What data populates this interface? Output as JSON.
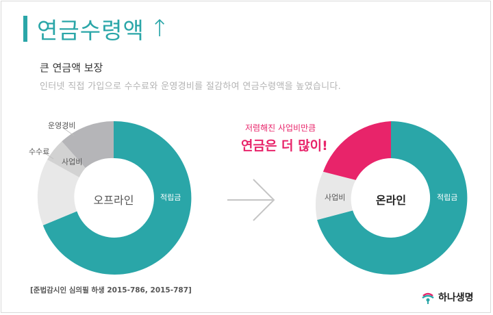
{
  "header": {
    "title": "연금수령액",
    "title_arrow": "↑",
    "subtitle": "큰 연금액 보장",
    "description": "인터넷 직접 가입으로 수수료와 운영경비를 절감하여 연금수령액을 높였습니다."
  },
  "offline_chart": {
    "center_label": "오프라인",
    "outer_labels": {
      "operating": "운영경비",
      "commission": "수수료"
    },
    "inner_labels": {
      "business": "사업비",
      "reserve": "적립금"
    }
  },
  "online_chart": {
    "center_label": "온라인",
    "inner_labels": {
      "business": "사업비",
      "reserve": "적립금"
    }
  },
  "callout": {
    "line1": "저렴해진 사업비만큼",
    "line2": "연금은 더 많이!"
  },
  "source": "[준법감시인 심의필 하생 2015-786, 2015-787]",
  "logo": {
    "text": "하나생명"
  },
  "colors": {
    "teal": "#2aa6a8",
    "pink": "#e8246a",
    "gray_dark": "#b3b3b3",
    "gray_mid": "#cfcfcf",
    "gray_light": "#e8e8e8"
  }
}
